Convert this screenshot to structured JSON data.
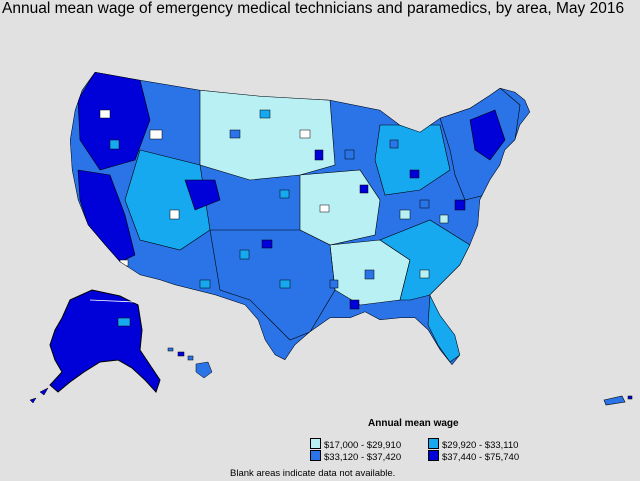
{
  "title": "Annual mean wage of emergency medical technicians and paramedics, by area, May 2016",
  "legend": {
    "title": "Annual mean wage",
    "items": [
      {
        "label": "$17,000 - $29,910",
        "color": "#b8f0f4"
      },
      {
        "label": "$29,920 - $33,110",
        "color": "#16a9f0"
      },
      {
        "label": "$33,120 - $37,420",
        "color": "#2a74e8"
      },
      {
        "label": "$37,440 - $75,740",
        "color": "#0000d8"
      }
    ]
  },
  "footnote": "Blank areas indicate data not available.",
  "colors": {
    "background": "#e1e1e1",
    "no_data": "#ffffff",
    "border": "#000000"
  }
}
